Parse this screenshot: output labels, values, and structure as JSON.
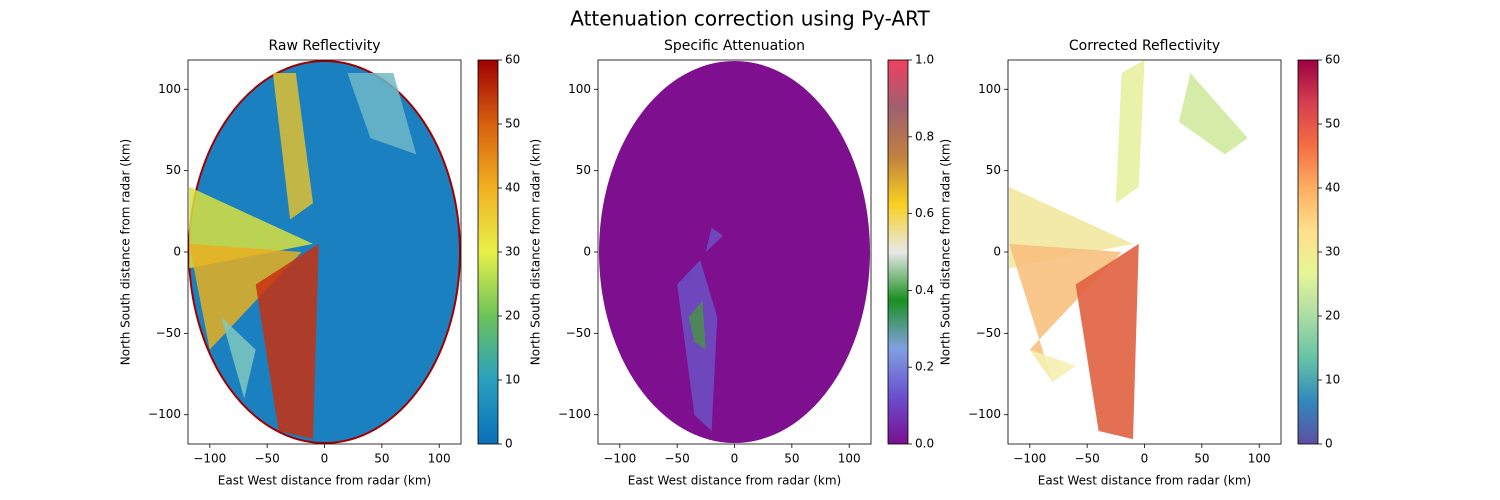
{
  "title": "Attenuation correction using Py-ART",
  "chart_data": [
    {
      "type": "image",
      "title": "Raw Reflectivity",
      "xlabel": "East West distance from radar (km)",
      "ylabel": "North South distance from radar (km)",
      "xlim": [
        -119,
        119
      ],
      "ylim": [
        -118,
        118
      ],
      "xticks": [
        {
          "value": -100,
          "label": "−100"
        },
        {
          "value": -50,
          "label": "−50"
        },
        0,
        50,
        100
      ],
      "yticks": [
        {
          "value": -100,
          "label": "−100"
        },
        {
          "value": -50,
          "label": "−50"
        },
        0,
        50,
        100
      ],
      "colorbar": {
        "lim": [
          0,
          60
        ],
        "ticks": [
          0,
          10,
          20,
          30,
          40,
          50,
          60
        ],
        "colors": [
          "#0a6fb8",
          "#2aa0c0",
          "#6cc35a",
          "#e8f04a",
          "#f0b020",
          "#d86010",
          "#a00000"
        ]
      }
    },
    {
      "type": "image",
      "title": "Specific Attenuation",
      "xlabel": "East West distance from radar (km)",
      "ylabel": "North South distance from radar (km)",
      "xlim": [
        -119,
        119
      ],
      "ylim": [
        -118,
        118
      ],
      "xticks": [
        {
          "value": -100,
          "label": "−100"
        },
        {
          "value": -50,
          "label": "−50"
        },
        0,
        50,
        100
      ],
      "yticks": [
        {
          "value": -100,
          "label": "−100"
        },
        {
          "value": -50,
          "label": "−50"
        },
        0,
        50,
        100
      ],
      "colorbar": {
        "lim": [
          0,
          1
        ],
        "ticks": [
          {
            "value": 0,
            "label": "0.0"
          },
          0.2,
          0.4,
          0.6,
          0.8,
          {
            "value": 1,
            "label": "1.0"
          }
        ],
        "colors": [
          "#7a0f90",
          "#6a50d0",
          "#80a0e0",
          "#1a9020",
          "#e8e8e8",
          "#f8d020",
          "#c08040",
          "#a06070",
          "#f04060"
        ]
      }
    },
    {
      "type": "image",
      "title": "Corrected Reflectivity",
      "xlabel": "East West distance from radar (km)",
      "ylabel": "North South distance from radar (km)",
      "xlim": [
        -119,
        119
      ],
      "ylim": [
        -118,
        118
      ],
      "xticks": [
        {
          "value": -100,
          "label": "−100"
        },
        {
          "value": -50,
          "label": "−50"
        },
        0,
        50,
        100
      ],
      "yticks": [
        {
          "value": -100,
          "label": "−100"
        },
        {
          "value": -50,
          "label": "−50"
        },
        0,
        50,
        100
      ],
      "colorbar": {
        "lim": [
          0,
          60
        ],
        "ticks": [
          0,
          10,
          20,
          30,
          40,
          50,
          60
        ],
        "colors": [
          "#5e4fa2",
          "#3288bd",
          "#66c2a5",
          "#abdda4",
          "#e6f598",
          "#fee08b",
          "#fdae61",
          "#f46d43",
          "#d53e4f",
          "#9e0142"
        ]
      }
    }
  ]
}
